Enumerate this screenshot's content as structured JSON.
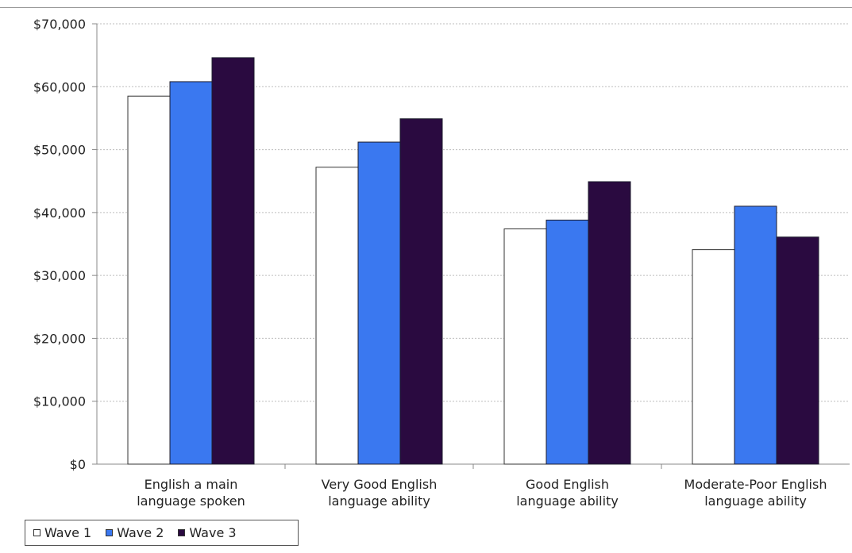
{
  "chart_data": {
    "type": "bar",
    "title": "",
    "xlabel": "",
    "ylabel": "",
    "ylim": [
      0,
      70000
    ],
    "yticks": [
      0,
      10000,
      20000,
      30000,
      40000,
      50000,
      60000,
      70000
    ],
    "ytick_labels": [
      "$0",
      "$10,000",
      "$20,000",
      "$30,000",
      "$40,000",
      "$50,000",
      "$60,000",
      "$70,000"
    ],
    "grid": true,
    "legend_position": "bottom-left",
    "categories": [
      [
        "English a main",
        "language spoken"
      ],
      [
        "Very Good English",
        "language ability"
      ],
      [
        "Good English",
        "language ability"
      ],
      [
        "Moderate-Poor English",
        "language ability"
      ]
    ],
    "series": [
      {
        "name": "Wave 1",
        "color": "#ffffff",
        "values": [
          58500,
          47200,
          37400,
          34100
        ]
      },
      {
        "name": "Wave 2",
        "color": "#3a78f0",
        "values": [
          60800,
          51200,
          38800,
          41000
        ]
      },
      {
        "name": "Wave 3",
        "color": "#2a0a40",
        "values": [
          64600,
          54900,
          44900,
          36100
        ]
      }
    ]
  },
  "legend": {
    "items": [
      {
        "label": "Wave 1",
        "color": "#ffffff"
      },
      {
        "label": "Wave 2",
        "color": "#3a78f0"
      },
      {
        "label": "Wave 3",
        "color": "#2a0a40"
      }
    ]
  }
}
